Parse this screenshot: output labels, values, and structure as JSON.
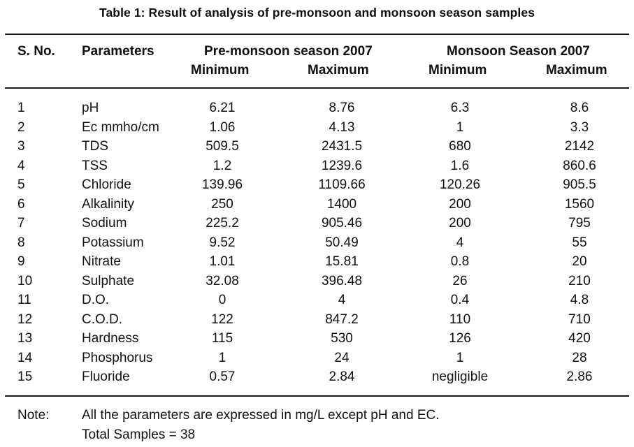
{
  "caption": "Table  1: Result of analysis of pre-monsoon and monsoon season samples",
  "header": {
    "sno": "S. No.",
    "parameters": "Parameters",
    "pre_monsoon": "Pre-monsoon season 2007",
    "monsoon": "Monsoon Season 2007",
    "pre_min": "Minimum",
    "pre_max": "Maximum",
    "mon_min": "Minimum",
    "mon_max": "Maximum"
  },
  "rows": [
    {
      "sno": "1",
      "param": "pH",
      "pre_min": "6.21",
      "pre_max": "8.76",
      "mon_min": "6.3",
      "mon_max": "8.6"
    },
    {
      "sno": "2",
      "param": "Ec mmho/cm",
      "pre_min": "1.06",
      "pre_max": "4.13",
      "mon_min": "1",
      "mon_max": "3.3"
    },
    {
      "sno": "3",
      "param": "TDS",
      "pre_min": "509.5",
      "pre_max": "2431.5",
      "mon_min": "680",
      "mon_max": "2142"
    },
    {
      "sno": "4",
      "param": "TSS",
      "pre_min": "1.2",
      "pre_max": "1239.6",
      "mon_min": "1.6",
      "mon_max": "860.6"
    },
    {
      "sno": "5",
      "param": "Chloride",
      "pre_min": "139.96",
      "pre_max": "1109.66",
      "mon_min": "120.26",
      "mon_max": "905.5"
    },
    {
      "sno": "6",
      "param": "Alkalinity",
      "pre_min": "250",
      "pre_max": "1400",
      "mon_min": "200",
      "mon_max": "1560"
    },
    {
      "sno": "7",
      "param": "Sodium",
      "pre_min": "225.2",
      "pre_max": "905.46",
      "mon_min": "200",
      "mon_max": "795"
    },
    {
      "sno": "8",
      "param": "Potassium",
      "pre_min": "9.52",
      "pre_max": "50.49",
      "mon_min": "4",
      "mon_max": "55"
    },
    {
      "sno": "9",
      "param": "Nitrate",
      "pre_min": "1.01",
      "pre_max": "15.81",
      "mon_min": "0.8",
      "mon_max": "20"
    },
    {
      "sno": "10",
      "param": "Sulphate",
      "pre_min": "32.08",
      "pre_max": "396.48",
      "mon_min": "26",
      "mon_max": "210"
    },
    {
      "sno": "11",
      "param": "D.O.",
      "pre_min": "0",
      "pre_max": "4",
      "mon_min": "0.4",
      "mon_max": "4.8"
    },
    {
      "sno": "12",
      "param": "C.O.D.",
      "pre_min": "122",
      "pre_max": "847.2",
      "mon_min": "110",
      "mon_max": "710"
    },
    {
      "sno": "13",
      "param": "Hardness",
      "pre_min": "115",
      "pre_max": "530",
      "mon_min": "126",
      "mon_max": "420"
    },
    {
      "sno": "14",
      "param": "Phosphorus",
      "pre_min": "1",
      "pre_max": "24",
      "mon_min": "1",
      "mon_max": "28"
    },
    {
      "sno": "15",
      "param": "Fluoride",
      "pre_min": "0.57",
      "pre_max": "2.84",
      "mon_min": "negligible",
      "mon_max": "2.86"
    }
  ],
  "note": {
    "label": "Note:",
    "line1": "All the parameters are expressed in mg/L except pH and EC.",
    "line2": "Total Samples = 38"
  }
}
